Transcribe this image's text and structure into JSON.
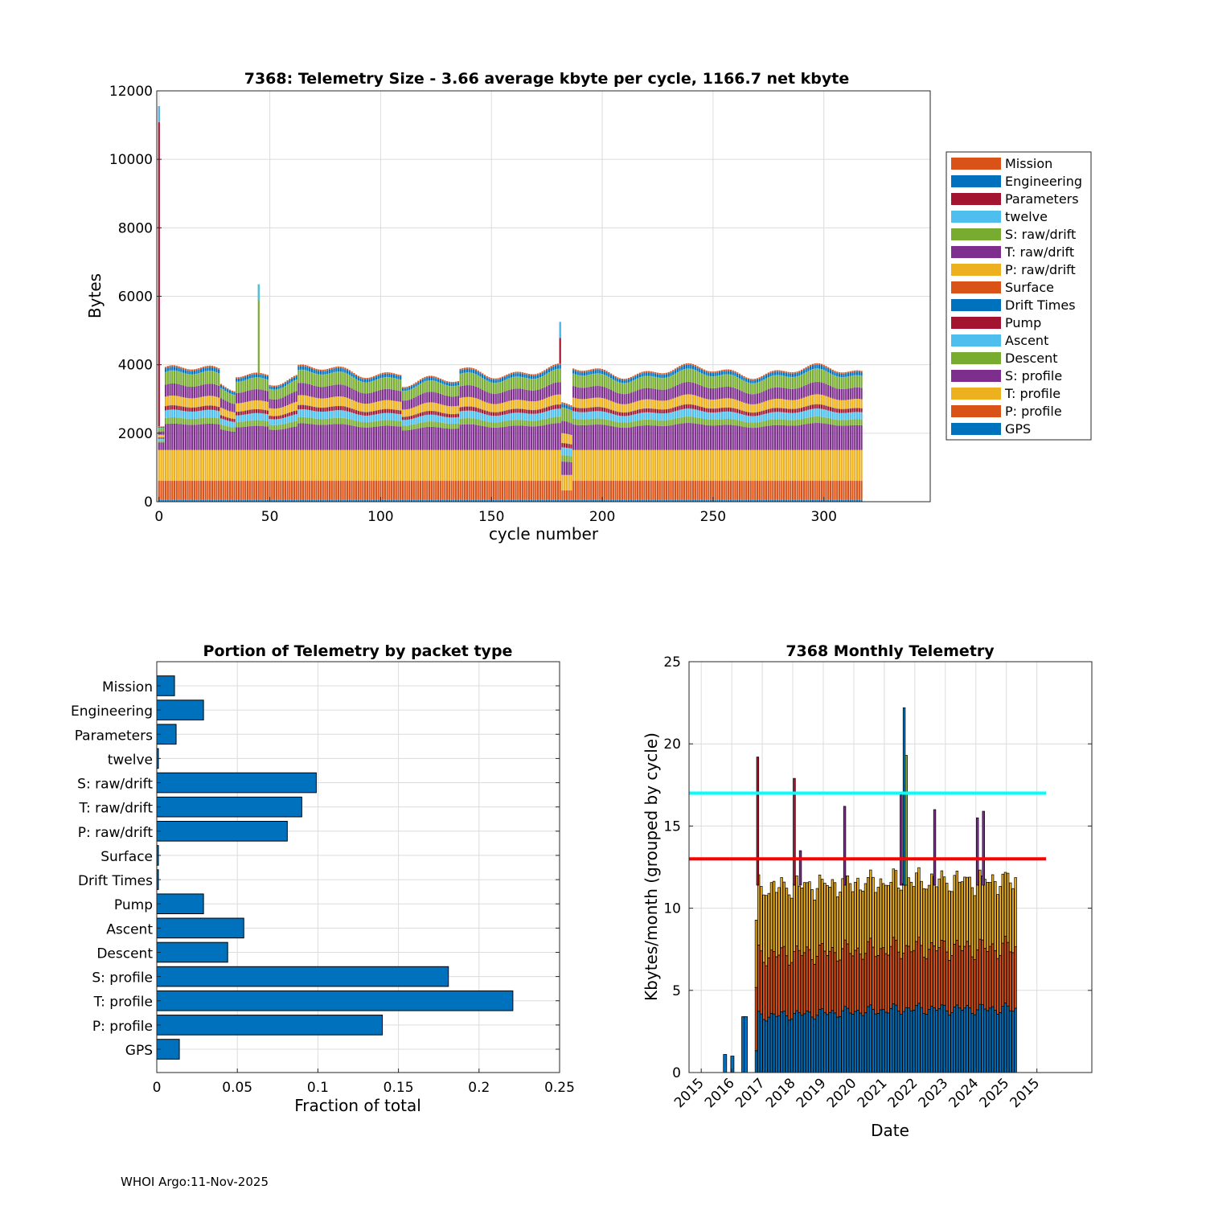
{
  "colors": {
    "orange": "#D95319",
    "blue": "#0072BD",
    "red": "#A2142F",
    "cyan": "#4DBEEE",
    "green": "#77AC30",
    "purple": "#7E2F8E",
    "yellow": "#EDB120",
    "grid": "#dcdcdc",
    "hline_cyan": "#00FFFF",
    "hline_red": "#FF0000"
  },
  "footer": "WHOI Argo:11-Nov-2025",
  "chart_data": [
    {
      "type": "bar",
      "stacked": true,
      "title": "7368: Telemetry Size - 3.66 average kbyte per cycle, 1166.7 net kbyte",
      "xlabel": "cycle number",
      "ylabel": "Bytes",
      "xlim": [
        -1,
        348
      ],
      "ylim": [
        0,
        12000
      ],
      "xticks": [
        0,
        50,
        100,
        150,
        200,
        250,
        300
      ],
      "yticks": [
        0,
        2000,
        4000,
        6000,
        8000,
        10000,
        12000
      ],
      "grid": true,
      "legend_position": "right",
      "legend": [
        "Mission",
        "Engineering",
        "Parameters",
        "twelve",
        "S: raw/drift",
        "T: raw/drift",
        "P: raw/drift",
        "Surface",
        "Drift Times",
        "Pump",
        "Ascent",
        "Descent",
        "S: profile",
        "T: profile",
        "P: profile",
        "GPS"
      ],
      "legend_colors": [
        "#D95319",
        "#0072BD",
        "#A2142F",
        "#4DBEEE",
        "#77AC30",
        "#7E2F8E",
        "#EDB120",
        "#D95319",
        "#0072BD",
        "#A2142F",
        "#4DBEEE",
        "#77AC30",
        "#7E2F8E",
        "#EDB120",
        "#D95319",
        "#0072BD"
      ],
      "cycles_range": [
        0,
        317
      ],
      "typical_segments": [
        {
          "name": "GPS",
          "value": 50
        },
        {
          "name": "P: profile",
          "value": 560
        },
        {
          "name": "T: profile",
          "value": 900
        },
        {
          "name": "S: profile",
          "value": 720
        },
        {
          "name": "Descent",
          "value": 170
        },
        {
          "name": "Ascent",
          "value": 210
        },
        {
          "name": "Pump",
          "value": 110
        },
        {
          "name": "Drift Times",
          "value": 5
        },
        {
          "name": "Surface",
          "value": 5
        },
        {
          "name": "P: raw/drift",
          "value": 260
        },
        {
          "name": "T: raw/drift",
          "value": 330
        },
        {
          "name": "S: raw/drift",
          "value": 350
        },
        {
          "name": "twelve",
          "value": 5
        },
        {
          "name": "Parameters",
          "value": 0
        },
        {
          "name": "Engineering",
          "value": 100
        },
        {
          "name": "Mission",
          "value": 40
        }
      ],
      "notable_totals": [
        {
          "cycle": 0,
          "value": 11550
        },
        {
          "cycle": 45,
          "value": 6350
        },
        {
          "cycle": 181,
          "value": 5250
        }
      ]
    },
    {
      "type": "bar",
      "orientation": "horizontal",
      "title": "Portion of Telemetry by packet type",
      "xlabel": "Fraction of total",
      "xlim": [
        0,
        0.25
      ],
      "xticks": [
        0,
        0.05,
        0.1,
        0.15,
        0.2,
        0.25
      ],
      "xtick_labels": [
        "0",
        "0.05",
        "0.1",
        "0.15",
        "0.2",
        "0.25"
      ],
      "grid": true,
      "categories": [
        "Mission",
        "Engineering",
        "Parameters",
        "twelve",
        "S: raw/drift",
        "T: raw/drift",
        "P: raw/drift",
        "Surface",
        "Drift Times",
        "Pump",
        "Ascent",
        "Descent",
        "S: profile",
        "T: profile",
        "P: profile",
        "GPS"
      ],
      "values": [
        0.011,
        0.029,
        0.012,
        0.001,
        0.099,
        0.09,
        0.081,
        0.001,
        0.001,
        0.029,
        0.054,
        0.044,
        0.181,
        0.221,
        0.14,
        0.014
      ]
    },
    {
      "type": "bar",
      "stacked": true,
      "title": "7368 Monthly Telemetry",
      "xlabel": "Date",
      "ylabel": "Kbytes/month (grouped by cycle)",
      "ylim": [
        0,
        25
      ],
      "yticks": [
        0,
        5,
        10,
        15,
        20,
        25
      ],
      "xtick_labels": [
        "2015",
        "2016",
        "2017",
        "2018",
        "2019",
        "2020",
        "2021",
        "2022",
        "2023",
        "2024",
        "2025",
        "2015"
      ],
      "xlim_years": [
        2014.6,
        2027.8
      ],
      "grid": true,
      "hlines": [
        {
          "value": 17,
          "color": "#00FFFF"
        },
        {
          "value": 13,
          "color": "#FF0000"
        }
      ],
      "hline_xrange_years": [
        2014.6,
        2026.3
      ],
      "series_order": [
        "blue base",
        "orange mid",
        "yellow top",
        "spikes"
      ],
      "early_bars": [
        {
          "t": 2015.78,
          "value": 1.1
        },
        {
          "t": 2016.02,
          "value": 1.0
        },
        {
          "t": 2016.38,
          "value": 3.4
        },
        {
          "t": 2016.46,
          "value": 3.4
        }
      ],
      "data_range_years": [
        2016.8,
        2025.3
      ],
      "typical_stack": {
        "blue": 3.8,
        "orange": 3.7,
        "yellow": 4.1
      },
      "spikes": [
        {
          "t": 2016.85,
          "value": 19.2
        },
        {
          "t": 2018.05,
          "value": 17.9
        },
        {
          "t": 2018.25,
          "value": 13.5
        },
        {
          "t": 2019.7,
          "value": 16.2
        },
        {
          "t": 2021.55,
          "value": 16.9
        },
        {
          "t": 2021.65,
          "value": 22.2
        },
        {
          "t": 2021.72,
          "value": 19.3
        },
        {
          "t": 2022.65,
          "value": 16.0
        },
        {
          "t": 2024.05,
          "value": 15.5
        },
        {
          "t": 2024.25,
          "value": 15.9
        }
      ]
    }
  ]
}
